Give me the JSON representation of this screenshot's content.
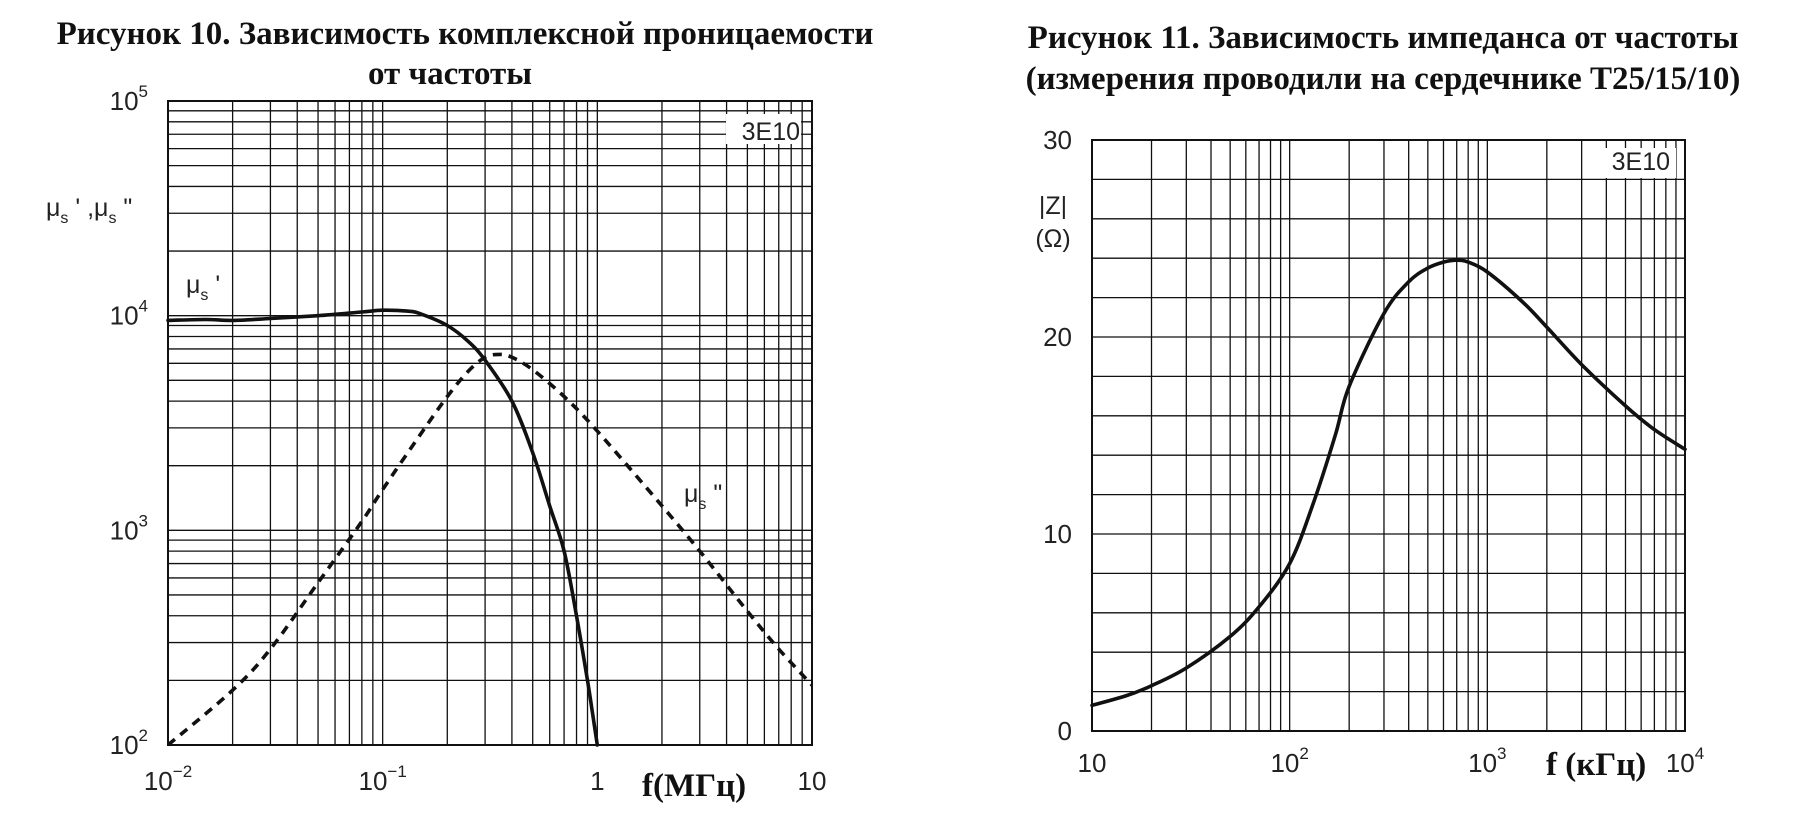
{
  "chart_data": [
    {
      "type": "line",
      "title": "Рисунок 10. Зависимость комплексной проницаемости от частоты",
      "title_lines": [
        "Рисунок 10. Зависимость комплексной проницаемости",
        "от частоты"
      ],
      "material_label": "3E10",
      "xscale": "log",
      "yscale": "log",
      "xlim": [
        0.01,
        10
      ],
      "ylim": [
        100,
        100000
      ],
      "xlabel": "f(МГц)",
      "ylabel_main": "μ",
      "ylabel_sub": "s",
      "ylabel_text": "μs ', μs \"",
      "x_ticks": [
        {
          "value": 0.01,
          "base": "10",
          "exp": "−2"
        },
        {
          "value": 0.1,
          "base": "10",
          "exp": "−1"
        },
        {
          "value": 1,
          "base": "1",
          "exp": ""
        },
        {
          "value": 10,
          "base": "10",
          "exp": ""
        }
      ],
      "y_ticks": [
        {
          "value": 100,
          "base": "10",
          "exp": "2"
        },
        {
          "value": 1000,
          "base": "10",
          "exp": "3"
        },
        {
          "value": 10000,
          "base": "10",
          "exp": "4"
        },
        {
          "value": 100000,
          "base": "10",
          "exp": "5"
        }
      ],
      "grid": true,
      "series": [
        {
          "name": "μs '",
          "label_main": "μ",
          "label_sub": "s",
          "label_mark": "'",
          "style": "solid",
          "x": [
            0.01,
            0.015,
            0.02,
            0.03,
            0.05,
            0.08,
            0.1,
            0.13,
            0.15,
            0.2,
            0.25,
            0.3,
            0.4,
            0.5,
            0.6,
            0.7,
            0.8,
            0.9,
            0.95,
            1.0
          ],
          "y": [
            9500,
            9600,
            9500,
            9700,
            10000,
            10400,
            10600,
            10500,
            10200,
            9000,
            7600,
            6200,
            4000,
            2300,
            1300,
            800,
            400,
            200,
            140,
            100
          ]
        },
        {
          "name": "μs \"",
          "label_main": "μ",
          "label_sub": "s",
          "label_mark": "\"",
          "style": "dashed",
          "x": [
            0.01,
            0.02,
            0.03,
            0.05,
            0.08,
            0.1,
            0.15,
            0.2,
            0.25,
            0.3,
            0.35,
            0.4,
            0.5,
            0.7,
            1.0,
            2.0,
            3.0,
            5.0,
            7.0,
            10.0
          ],
          "y": [
            100,
            180,
            280,
            570,
            1100,
            1550,
            2800,
            4200,
            5500,
            6400,
            6600,
            6400,
            5600,
            4200,
            2900,
            1300,
            800,
            420,
            280,
            190
          ]
        }
      ]
    },
    {
      "type": "line",
      "title": "Рисунок 11. Зависимость импеданса от частоты (измерения проводили на сердечнике T25/15/10)",
      "title_lines": [
        "Рисунок 11. Зависимость импеданса от частоты",
        "(измерения проводили на сердечнике T25/15/10)"
      ],
      "material_label": "3E10",
      "xscale": "log",
      "yscale": "linear",
      "xlim": [
        10,
        10000
      ],
      "ylim": [
        0,
        30
      ],
      "xlabel": "f (кГц)",
      "ylabel_lines": [
        "|Z|",
        "(Ω)"
      ],
      "x_ticks": [
        {
          "value": 10,
          "base": "10",
          "exp": ""
        },
        {
          "value": 100,
          "base": "10",
          "exp": "2"
        },
        {
          "value": 1000,
          "base": "10",
          "exp": "3"
        },
        {
          "value": 10000,
          "base": "10",
          "exp": "4"
        }
      ],
      "y_ticks": [
        0,
        10,
        20,
        30
      ],
      "grid": true,
      "series": [
        {
          "name": "",
          "style": "solid",
          "x": [
            10,
            15,
            20,
            30,
            50,
            70,
            100,
            130,
            170,
            200,
            300,
            400,
            500,
            600,
            700,
            800,
            1000,
            1500,
            2000,
            3000,
            5000,
            7000,
            10000
          ],
          "y": [
            1.3,
            1.8,
            2.3,
            3.2,
            4.8,
            6.3,
            8.5,
            11.4,
            15.0,
            17.5,
            21.2,
            22.8,
            23.5,
            23.8,
            23.9,
            23.8,
            23.3,
            21.8,
            20.5,
            18.6,
            16.5,
            15.3,
            14.3
          ]
        }
      ]
    }
  ]
}
